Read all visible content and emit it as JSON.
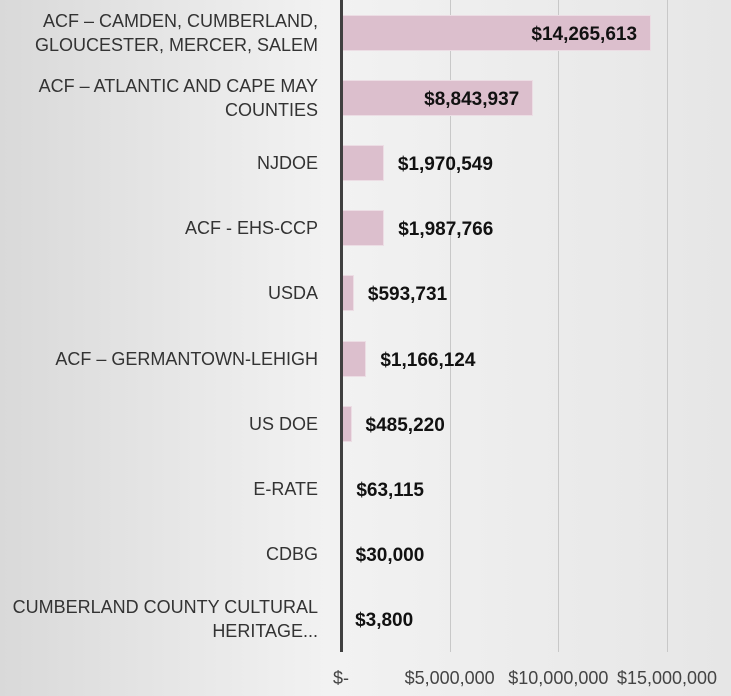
{
  "chart_data": {
    "type": "bar",
    "orientation": "horizontal",
    "categories": [
      "ACF – CAMDEN, CUMBERLAND, GLOUCESTER, MERCER, SALEM",
      "ACF – ATLANTIC AND CAPE MAY COUNTIES",
      "NJDOE",
      "ACF - EHS-CCP",
      "USDA",
      "ACF – GERMANTOWN-LEHIGH",
      "US DOE",
      "E-RATE",
      "CDBG",
      "CUMBERLAND COUNTY CULTURAL HERITAGE..."
    ],
    "values": [
      14265613,
      8843937,
      1970549,
      1987766,
      593731,
      1166124,
      485220,
      63115,
      30000,
      3800
    ],
    "value_labels": [
      "$14,265,613",
      "$8,843,937",
      "$1,970,549",
      "$1,987,766",
      "$593,731",
      "$1,166,124",
      "$485,220",
      "$63,115",
      "$30,000",
      "$3,800"
    ],
    "color": "#dcbfcd",
    "xlim": [
      0,
      15000000
    ],
    "xticks": [
      {
        "value": 0,
        "label": "$-"
      },
      {
        "value": 5000000,
        "label": "$5,000,000"
      },
      {
        "value": 10000000,
        "label": "$10,000,000"
      },
      {
        "value": 15000000,
        "label": "$15,000,000"
      }
    ],
    "grid": true
  }
}
